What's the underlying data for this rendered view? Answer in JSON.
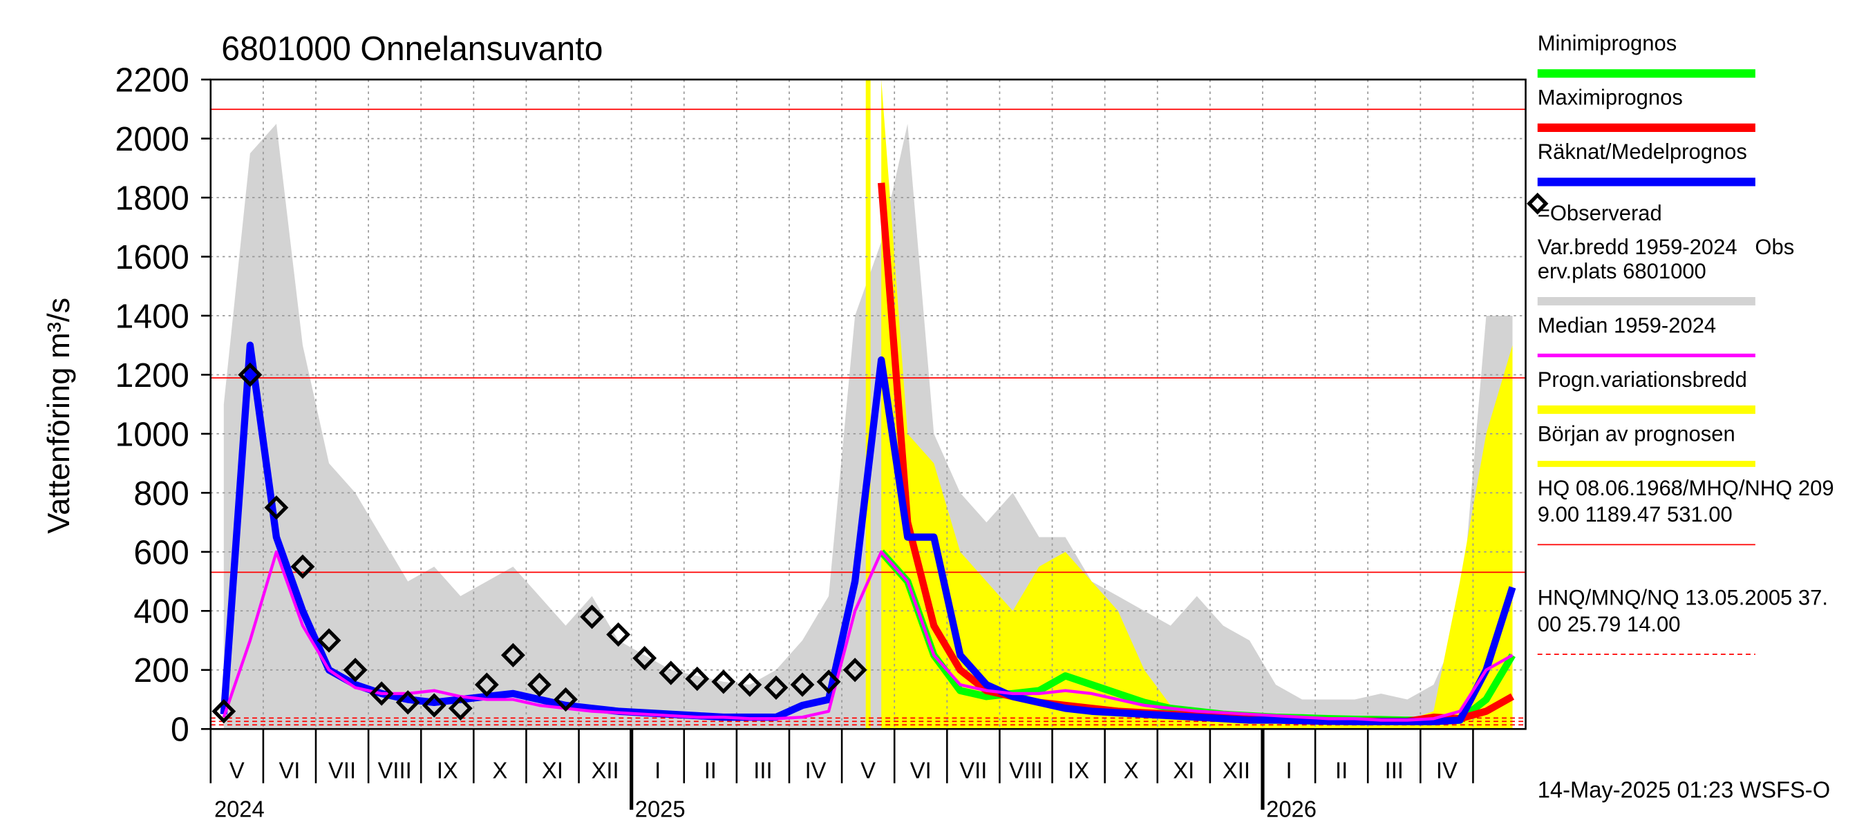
{
  "chart_data": {
    "type": "line",
    "title": "6801000 Onnelansuvanto",
    "y_label": "Vattenföring m³/s",
    "footer": "14-May-2025 01:23 WSFS-O",
    "ylim": [
      0,
      2200
    ],
    "yticks": [
      0,
      200,
      400,
      600,
      800,
      1000,
      1200,
      1400,
      1600,
      1800,
      2000,
      2200
    ],
    "grid": true,
    "categories": [
      "V",
      null,
      "VI",
      null,
      "VII",
      null,
      "VIII",
      null,
      "IX",
      null,
      "X",
      null,
      "XI",
      null,
      "XII",
      null,
      "I",
      null,
      "II",
      null,
      "III",
      null,
      "IV",
      null,
      "V",
      null,
      "VI",
      null,
      "VII",
      null,
      "VIII",
      null,
      "IX",
      null,
      "X",
      null,
      "XI",
      null,
      "XII",
      null,
      "I",
      null,
      "II",
      null,
      "III",
      null,
      "IV",
      null,
      null,
      null
    ],
    "years": [
      "2024",
      null,
      null,
      null,
      null,
      null,
      null,
      null,
      null,
      null,
      null,
      null,
      null,
      null,
      null,
      null,
      "2025",
      null,
      null,
      null,
      null,
      null,
      null,
      null,
      null,
      null,
      null,
      null,
      null,
      null,
      null,
      null,
      null,
      null,
      null,
      null,
      null,
      null,
      null,
      null,
      "2026",
      null,
      null,
      null,
      null,
      null,
      null,
      null,
      null,
      null
    ],
    "series": [
      {
        "name": [
          "Minimiprognos"
        ],
        "kind": "line",
        "color": "#00ff00",
        "width": 6,
        "values": [
          null,
          null,
          null,
          null,
          null,
          null,
          null,
          null,
          null,
          null,
          null,
          null,
          null,
          null,
          null,
          null,
          null,
          null,
          null,
          null,
          null,
          null,
          null,
          null,
          null,
          600,
          500,
          250,
          130,
          110,
          120,
          130,
          180,
          150,
          120,
          90,
          70,
          60,
          50,
          45,
          40,
          38,
          35,
          33,
          32,
          30,
          28,
          30,
          100,
          250
        ]
      },
      {
        "name": [
          "Maximiprognos"
        ],
        "kind": "line",
        "color": "#ff0000",
        "width": 6,
        "values": [
          null,
          null,
          null,
          null,
          null,
          null,
          null,
          null,
          null,
          null,
          null,
          null,
          null,
          null,
          null,
          null,
          null,
          null,
          null,
          null,
          null,
          null,
          null,
          null,
          null,
          1850,
          700,
          350,
          200,
          130,
          110,
          90,
          80,
          70,
          60,
          55,
          50,
          45,
          40,
          35,
          32,
          30,
          28,
          27,
          26,
          26,
          40,
          35,
          60,
          110
        ]
      },
      {
        "name": [
          "Räknat/Medelprognos"
        ],
        "kind": "line",
        "color": "#0000ff",
        "width": 6,
        "values": [
          50,
          1300,
          650,
          400,
          200,
          150,
          120,
          100,
          90,
          100,
          110,
          120,
          100,
          80,
          70,
          60,
          55,
          50,
          45,
          40,
          40,
          40,
          80,
          100,
          500,
          1250,
          650,
          650,
          250,
          150,
          110,
          90,
          70,
          60,
          55,
          50,
          45,
          40,
          35,
          30,
          30,
          28,
          26,
          25,
          25,
          25,
          25,
          30,
          200,
          480
        ]
      },
      {
        "name": [
          "=Observerad"
        ],
        "kind": "markers",
        "color": "#000000",
        "values": [
          60,
          1200,
          750,
          550,
          300,
          200,
          120,
          90,
          80,
          70,
          150,
          250,
          150,
          100,
          380,
          320,
          240,
          190,
          170,
          160,
          150,
          140,
          150,
          160,
          200,
          null,
          null,
          null,
          null,
          null,
          null,
          null,
          null,
          null,
          null,
          null,
          null,
          null,
          null,
          null,
          null,
          null,
          null,
          null,
          null,
          null,
          null,
          null,
          null,
          null
        ]
      },
      {
        "name": [
          "Var.bredd 1959-2024   Obs",
          "erv.plats 6801000"
        ],
        "kind": "area",
        "color": "#d3d3d3",
        "values": [
          1100,
          1950,
          2050,
          1300,
          900,
          800,
          650,
          500,
          550,
          450,
          500,
          550,
          450,
          350,
          450,
          300,
          250,
          200,
          180,
          160,
          150,
          200,
          300,
          450,
          1400,
          1650,
          2050,
          1000,
          800,
          700,
          800,
          650,
          650,
          500,
          450,
          400,
          350,
          450,
          350,
          300,
          150,
          100,
          100,
          100,
          120,
          100,
          150,
          350,
          1400,
          1400
        ]
      },
      {
        "name": [
          "Median 1959-2024"
        ],
        "kind": "line",
        "color": "#ff00ff",
        "width": 2.5,
        "values": [
          40,
          300,
          600,
          350,
          200,
          140,
          120,
          120,
          130,
          110,
          100,
          100,
          80,
          70,
          60,
          55,
          50,
          45,
          40,
          40,
          35,
          35,
          40,
          60,
          400,
          600,
          500,
          250,
          150,
          130,
          120,
          120,
          130,
          120,
          100,
          80,
          70,
          60,
          55,
          50,
          45,
          40,
          35,
          35,
          30,
          30,
          35,
          60,
          200,
          250
        ]
      },
      {
        "name": [
          "Progn.variationsbredd"
        ],
        "kind": "area",
        "color": "#ffff00",
        "values": [
          null,
          null,
          null,
          null,
          null,
          null,
          null,
          null,
          null,
          null,
          null,
          null,
          null,
          null,
          null,
          null,
          null,
          null,
          null,
          null,
          null,
          null,
          null,
          null,
          null,
          2200,
          1000,
          900,
          600,
          500,
          400,
          550,
          600,
          500,
          400,
          200,
          80,
          60,
          50,
          45,
          40,
          38,
          35,
          33,
          32,
          30,
          60,
          500,
          1000,
          1300
        ]
      }
    ],
    "forecast_start": {
      "name": "Början av prognosen",
      "color": "#ffff00"
    },
    "reference_lines": [
      {
        "label": [
          "HQ 08.06.1968/MHQ/NHQ 209",
          "9.00 1189.47 531.00"
        ],
        "values": [
          2099,
          1189.47,
          531
        ],
        "color": "#ff0000",
        "dashed": false
      },
      {
        "label": [
          "HNQ/MNQ/NQ 13.05.2005 37.",
          "00 25.79 14.00"
        ],
        "values": [
          37,
          25.79,
          14
        ],
        "color": "#ff0000",
        "dashed": true
      }
    ]
  }
}
